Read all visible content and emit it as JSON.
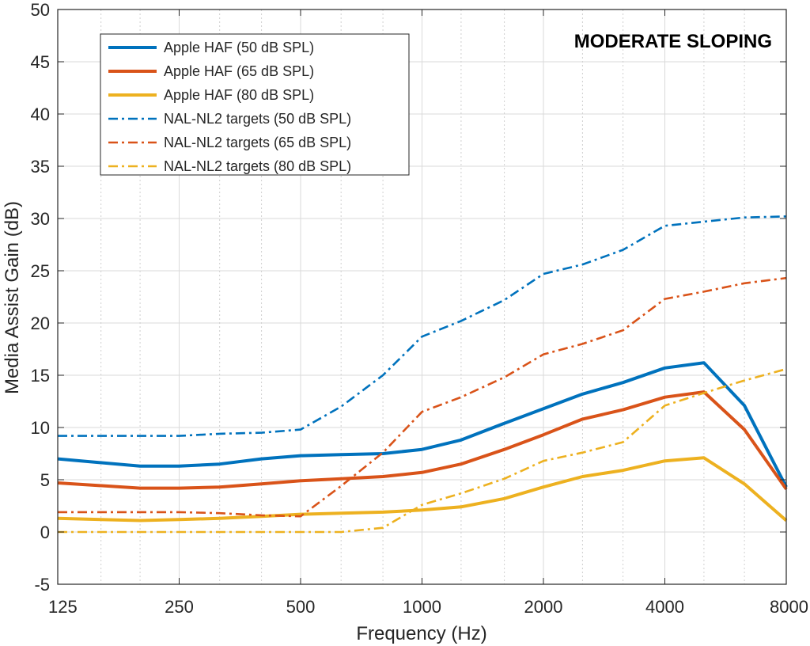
{
  "chart_data": {
    "type": "line",
    "title": "MODERATE SLOPING",
    "xlabel": "Frequency (Hz)",
    "ylabel": "Media Assist Gain (dB)",
    "xscale": "log2",
    "xlim": [
      125,
      8000
    ],
    "ylim": [
      -5,
      50
    ],
    "xticks": [
      125,
      250,
      500,
      1000,
      2000,
      4000,
      8000
    ],
    "xtick_labels": [
      "125",
      "250",
      "500",
      "1000",
      "2000",
      "4000",
      "8000"
    ],
    "yticks": [
      -5,
      0,
      5,
      10,
      15,
      20,
      25,
      30,
      35,
      40,
      45,
      50
    ],
    "ytick_labels": [
      "-5",
      "0",
      "5",
      "10",
      "15",
      "20",
      "25",
      "30",
      "35",
      "40",
      "45",
      "50"
    ],
    "minor_xgrid": [
      125,
      160,
      200,
      250,
      315,
      400,
      500,
      630,
      800,
      1000,
      1250,
      1600,
      2000,
      2500,
      3150,
      4000,
      5000,
      6300,
      8000
    ],
    "grid": true,
    "legend_position": "top-left",
    "series": [
      {
        "name": "Apple HAF (50 dB SPL)",
        "color": "#0072BD",
        "style": "solid",
        "x": [
          125,
          200,
          250,
          315,
          400,
          500,
          630,
          800,
          1000,
          1250,
          1600,
          2000,
          2500,
          3150,
          4000,
          5000,
          6300,
          8000
        ],
        "y": [
          7.0,
          6.3,
          6.3,
          6.5,
          7.0,
          7.3,
          7.4,
          7.5,
          7.9,
          8.8,
          10.4,
          11.8,
          13.2,
          14.3,
          15.7,
          16.2,
          12.1,
          4.3
        ]
      },
      {
        "name": "Apple HAF (65 dB SPL)",
        "color": "#D95319",
        "style": "solid",
        "x": [
          125,
          200,
          250,
          315,
          400,
          500,
          630,
          800,
          1000,
          1250,
          1600,
          2000,
          2500,
          3150,
          4000,
          5000,
          6300,
          8000
        ],
        "y": [
          4.7,
          4.2,
          4.2,
          4.3,
          4.6,
          4.9,
          5.1,
          5.3,
          5.7,
          6.5,
          7.9,
          9.3,
          10.8,
          11.7,
          12.9,
          13.4,
          9.8,
          4.1
        ]
      },
      {
        "name": "Apple HAF (80 dB SPL)",
        "color": "#EDB120",
        "style": "solid",
        "x": [
          125,
          200,
          250,
          315,
          400,
          500,
          630,
          800,
          1000,
          1250,
          1600,
          2000,
          2500,
          3150,
          4000,
          5000,
          6300,
          8000
        ],
        "y": [
          1.3,
          1.1,
          1.2,
          1.3,
          1.5,
          1.7,
          1.8,
          1.9,
          2.1,
          2.4,
          3.2,
          4.3,
          5.3,
          5.9,
          6.8,
          7.1,
          4.6,
          1.1
        ]
      },
      {
        "name": "NAL-NL2 targets (50 dB SPL)",
        "color": "#0072BD",
        "style": "dashdot",
        "x": [
          125,
          200,
          250,
          315,
          400,
          500,
          630,
          800,
          1000,
          1250,
          1600,
          2000,
          2500,
          3150,
          4000,
          5000,
          6300,
          8000
        ],
        "y": [
          9.2,
          9.2,
          9.2,
          9.4,
          9.5,
          9.8,
          12.0,
          15.0,
          18.7,
          20.2,
          22.2,
          24.7,
          25.6,
          27.0,
          29.3,
          29.7,
          30.1,
          30.2
        ]
      },
      {
        "name": "NAL-NL2 targets (65 dB SPL)",
        "color": "#D95319",
        "style": "dashdot",
        "x": [
          125,
          200,
          250,
          315,
          400,
          500,
          630,
          800,
          1000,
          1250,
          1600,
          2000,
          2500,
          3150,
          4000,
          5000,
          6300,
          8000
        ],
        "y": [
          1.9,
          1.9,
          1.9,
          1.8,
          1.6,
          1.5,
          4.4,
          7.6,
          11.5,
          12.9,
          14.8,
          17.0,
          18.0,
          19.3,
          22.3,
          23.0,
          23.8,
          24.3
        ]
      },
      {
        "name": "NAL-NL2 targets (80 dB SPL)",
        "color": "#EDB120",
        "style": "dashdot",
        "x": [
          125,
          200,
          250,
          315,
          400,
          500,
          630,
          800,
          1000,
          1250,
          1600,
          2000,
          2500,
          3150,
          4000,
          5000,
          6300,
          8000
        ],
        "y": [
          0.0,
          0.0,
          0.0,
          0.0,
          0.0,
          0.0,
          0.0,
          0.4,
          2.6,
          3.7,
          5.1,
          6.8,
          7.6,
          8.6,
          12.1,
          13.3,
          14.5,
          15.6
        ]
      }
    ]
  }
}
